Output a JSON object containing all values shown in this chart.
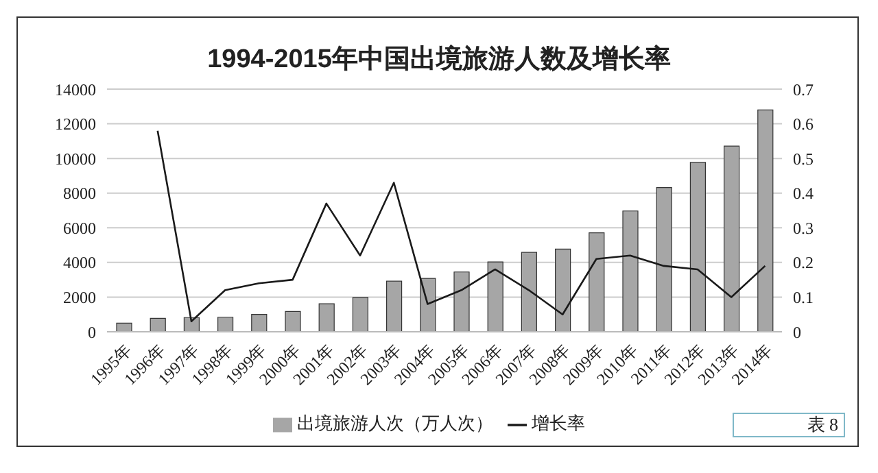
{
  "chart_data": {
    "type": "bar",
    "title": "1994-2015年中国出境旅游人数及增长率",
    "categories": [
      "1995年",
      "1996年",
      "1997年",
      "1998年",
      "1999年",
      "2000年",
      "2001年",
      "2002年",
      "2003年",
      "2004年",
      "2005年",
      "2006年",
      "2007年",
      "2008年",
      "2009年",
      "2010年",
      "2011年",
      "2012年",
      "2013年",
      "2014年"
    ],
    "series": [
      {
        "name": "出境旅游人次（万人次）",
        "color": "#a6a6a6",
        "values": [
          500,
          780,
          820,
          840,
          1000,
          1170,
          1620,
          1980,
          2920,
          3080,
          3450,
          4030,
          4580,
          4770,
          5710,
          6970,
          8320,
          9770,
          10710,
          12800
        ]
      },
      {
        "name": "增长率",
        "type": "line",
        "axis": "y2",
        "color": "#1a1a1a",
        "values": [
          null,
          0.58,
          0.03,
          0.12,
          0.14,
          0.15,
          0.37,
          0.22,
          0.43,
          0.08,
          0.12,
          0.18,
          0.12,
          0.05,
          0.21,
          0.22,
          0.19,
          0.18,
          0.1,
          0.19
        ]
      }
    ],
    "ylim": [
      0,
      14000
    ],
    "yticks": [
      0,
      2000,
      4000,
      6000,
      8000,
      10000,
      12000,
      14000
    ],
    "y2lim": [
      0,
      0.7
    ],
    "y2ticks": [
      0,
      0.1,
      0.2,
      0.3,
      0.4,
      0.5,
      0.6,
      0.7
    ],
    "grid": "y",
    "legend": "bottom",
    "marker": "none",
    "annotations": [
      "表 8"
    ]
  }
}
